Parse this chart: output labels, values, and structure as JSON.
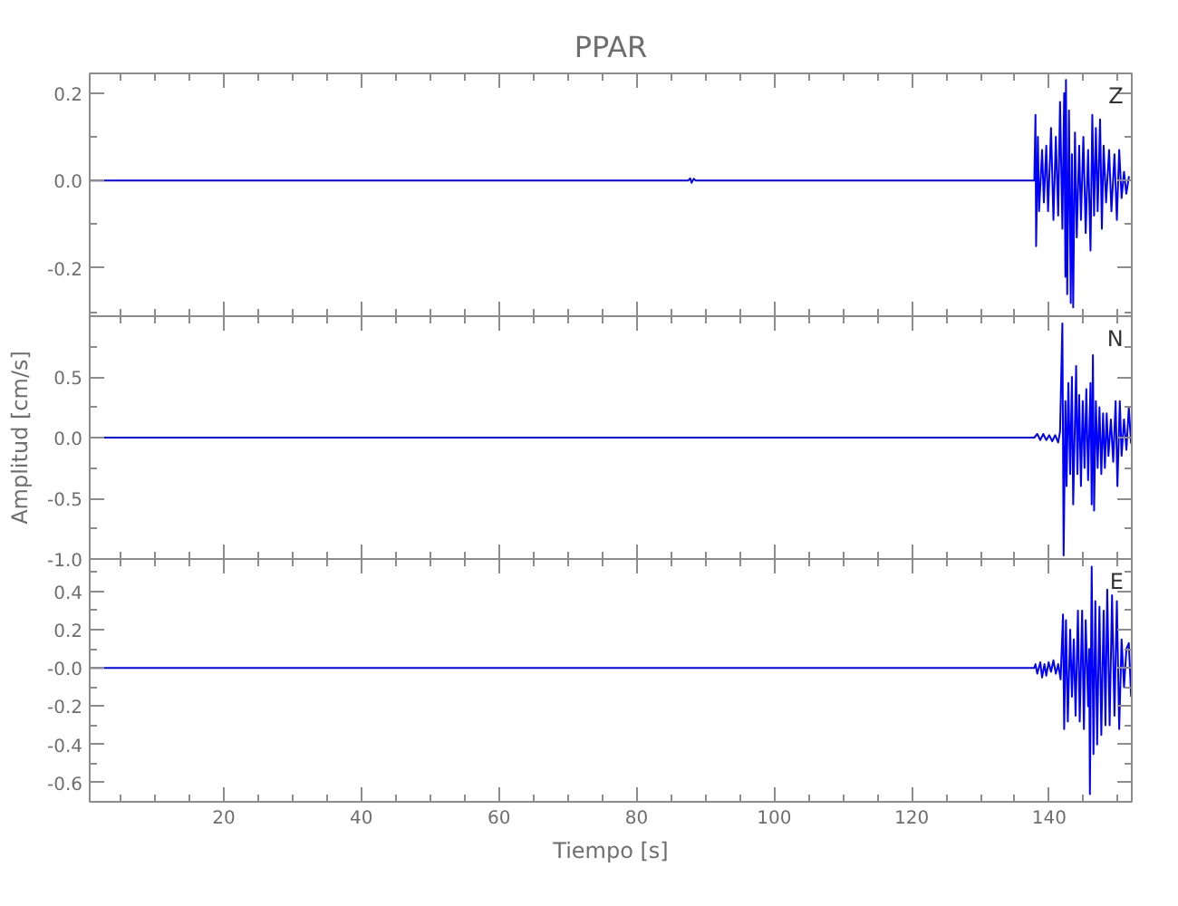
{
  "chart_data": [
    {
      "type": "line",
      "title": "PPAR",
      "tick_labels": "y",
      "x": [
        0.5,
        87.5,
        87.8,
        88.0,
        88.3,
        88.6,
        137.83,
        138.0,
        138.09,
        138.35,
        138.52,
        138.96,
        139.22,
        139.57,
        139.83,
        140.26,
        140.61,
        140.96,
        141.3,
        141.57,
        141.91,
        142.17,
        142.35,
        142.43,
        142.61,
        142.87,
        143.13,
        143.3,
        143.48,
        143.74,
        144.0,
        144.35,
        144.61,
        144.96,
        145.3,
        145.65,
        146.0,
        146.26,
        146.52,
        146.78,
        147.04,
        147.39,
        147.65,
        147.91,
        148.26,
        148.7,
        149.04,
        149.48,
        149.83,
        150.17,
        150.52,
        150.87,
        151.2,
        151.6
      ],
      "series": [
        {
          "name": "Z",
          "color": "#0000ff",
          "values": [
            0,
            0,
            0.005,
            -0.005,
            0.004,
            0,
            0,
            0.15,
            -0.15,
            0.1,
            -0.07,
            0.07,
            -0.05,
            0.08,
            -0.07,
            0.12,
            -0.09,
            0.1,
            -0.08,
            0.18,
            -0.11,
            0.2,
            -0.22,
            0.23,
            -0.26,
            0.16,
            -0.28,
            0.06,
            -0.29,
            0.11,
            -0.13,
            0.08,
            -0.09,
            0.1,
            -0.12,
            0.07,
            -0.16,
            0.15,
            -0.08,
            0.12,
            -0.07,
            0.14,
            -0.11,
            0.08,
            -0.05,
            0.07,
            -0.07,
            0.06,
            -0.09,
            0.07,
            -0.04,
            0.02,
            -0.03,
            0.01
          ]
        }
      ],
      "xlim": [
        0.5,
        152.0
      ],
      "xticks": [
        {
          "value": 5,
          "label": null
        },
        {
          "value": 10,
          "label": null
        },
        {
          "value": 15,
          "label": null
        },
        20,
        {
          "value": 25,
          "label": null
        },
        {
          "value": 30,
          "label": null
        },
        {
          "value": 35,
          "label": null
        },
        40,
        {
          "value": 45,
          "label": null
        },
        {
          "value": 50,
          "label": null
        },
        {
          "value": 55,
          "label": null
        },
        60,
        {
          "value": 65,
          "label": null
        },
        {
          "value": 70,
          "label": null
        },
        {
          "value": 75,
          "label": null
        },
        80,
        {
          "value": 85,
          "label": null
        },
        {
          "value": 90,
          "label": null
        },
        {
          "value": 95,
          "label": null
        },
        100,
        {
          "value": 105,
          "label": null
        },
        {
          "value": 110,
          "label": null
        },
        {
          "value": 115,
          "label": null
        },
        120,
        {
          "value": 125,
          "label": null
        },
        {
          "value": 130,
          "label": null
        },
        {
          "value": 135,
          "label": null
        },
        140,
        {
          "value": 145,
          "label": null
        },
        {
          "value": 150,
          "label": null
        }
      ],
      "ylim": [
        -0.31,
        0.245
      ],
      "yticks": [
        {
          "value": -0.3,
          "label": null
        },
        -0.2,
        {
          "value": -0.1,
          "label": null
        },
        {
          "value": 0,
          "label": "0.0"
        },
        {
          "value": 0.1,
          "label": null
        },
        0.2
      ]
    },
    {
      "type": "line",
      "ylabel": "Amplitud [cm/s]",
      "tick_labels": "y",
      "x": [
        0.5,
        137.83,
        138.26,
        138.7,
        139.13,
        139.57,
        140.0,
        140.43,
        140.87,
        141.3,
        141.57,
        141.91,
        142.09,
        142.35,
        142.52,
        142.78,
        143.04,
        143.3,
        143.48,
        143.91,
        144.09,
        144.35,
        144.61,
        144.87,
        145.13,
        145.39,
        145.65,
        146.0,
        146.17,
        146.35,
        146.52,
        146.78,
        147.04,
        147.3,
        147.57,
        147.83,
        148.09,
        148.35,
        148.61,
        148.96,
        149.3,
        149.65,
        149.91,
        150.26,
        150.52,
        150.87,
        151.22,
        151.57,
        151.9
      ],
      "series": [
        {
          "name": "N",
          "color": "#0000ff",
          "values": [
            0,
            0,
            0.03,
            -0.02,
            0.03,
            -0.02,
            0.02,
            -0.03,
            0.02,
            -0.04,
            0.05,
            0.94,
            -0.97,
            0.3,
            -0.4,
            0.45,
            -0.3,
            0.5,
            -0.55,
            0.59,
            -0.3,
            0.35,
            -0.4,
            0.3,
            -0.25,
            0.4,
            -0.35,
            0.45,
            -0.55,
            0.68,
            -0.6,
            0.3,
            -0.25,
            0.25,
            -0.3,
            0.2,
            -0.25,
            0.2,
            -0.15,
            0.15,
            -0.2,
            0.3,
            -0.4,
            0.3,
            -0.15,
            0.15,
            -0.1,
            0.25,
            -0.05
          ]
        }
      ],
      "xlim": [
        0.5,
        152.0
      ],
      "xticks": [
        {
          "value": 5,
          "label": null
        },
        {
          "value": 10,
          "label": null
        },
        {
          "value": 15,
          "label": null
        },
        20,
        {
          "value": 25,
          "label": null
        },
        {
          "value": 30,
          "label": null
        },
        {
          "value": 35,
          "label": null
        },
        40,
        {
          "value": 45,
          "label": null
        },
        {
          "value": 50,
          "label": null
        },
        {
          "value": 55,
          "label": null
        },
        60,
        {
          "value": 65,
          "label": null
        },
        {
          "value": 70,
          "label": null
        },
        {
          "value": 75,
          "label": null
        },
        80,
        {
          "value": 85,
          "label": null
        },
        {
          "value": 90,
          "label": null
        },
        {
          "value": 95,
          "label": null
        },
        100,
        {
          "value": 105,
          "label": null
        },
        {
          "value": 110,
          "label": null
        },
        {
          "value": 115,
          "label": null
        },
        120,
        {
          "value": 125,
          "label": null
        },
        {
          "value": 130,
          "label": null
        },
        {
          "value": 135,
          "label": null
        },
        140,
        {
          "value": 145,
          "label": null
        },
        {
          "value": 150,
          "label": null
        }
      ],
      "ylim": [
        -1.0,
        1.0
      ],
      "yticks": [
        {
          "value": -1,
          "label": "-1.0"
        },
        {
          "value": -0.75,
          "label": null
        },
        -0.5,
        {
          "value": -0.25,
          "label": null
        },
        {
          "value": 0,
          "label": "0.0"
        },
        {
          "value": 0.25,
          "label": null
        },
        0.5,
        {
          "value": 0.75,
          "label": null
        }
      ]
    },
    {
      "type": "line",
      "xlabel": "Tiempo [s]",
      "x": [
        0.5,
        137.83,
        138.0,
        138.26,
        138.7,
        138.96,
        139.3,
        139.57,
        139.91,
        140.26,
        140.61,
        140.96,
        141.3,
        141.65,
        142.0,
        142.17,
        142.43,
        142.7,
        143.04,
        143.3,
        143.57,
        143.83,
        144.17,
        144.43,
        144.78,
        145.04,
        145.3,
        145.65,
        145.8,
        145.91,
        146.17,
        146.43,
        146.7,
        146.96,
        147.3,
        147.57,
        147.91,
        148.17,
        148.43,
        148.78,
        149.13,
        149.48,
        149.83,
        150.17,
        150.52,
        150.87,
        151.22,
        151.57,
        151.9
      ],
      "series": [
        {
          "name": "E",
          "color": "#0000ff",
          "values": [
            0,
            0,
            0.02,
            -0.03,
            0.03,
            -0.05,
            0.02,
            -0.04,
            0.03,
            -0.02,
            0.04,
            -0.03,
            0.02,
            -0.06,
            0.28,
            -0.32,
            0.25,
            -0.28,
            0.2,
            -0.15,
            0.15,
            -0.25,
            0.3,
            -0.28,
            0.3,
            -0.32,
            0.25,
            -0.2,
            0.1,
            -0.66,
            0.53,
            -0.45,
            0.35,
            -0.4,
            0.32,
            -0.35,
            0.3,
            -0.3,
            0.41,
            -0.3,
            0.38,
            -0.25,
            0.35,
            -0.32,
            0.15,
            -0.1,
            0.1,
            0.13,
            -0.15
          ]
        }
      ],
      "xlim": [
        0.5,
        152.0
      ],
      "xticks": [
        {
          "value": 5,
          "label": null
        },
        {
          "value": 10,
          "label": null
        },
        {
          "value": 15,
          "label": null
        },
        20,
        {
          "value": 25,
          "label": null
        },
        {
          "value": 30,
          "label": null
        },
        {
          "value": 35,
          "label": null
        },
        40,
        {
          "value": 45,
          "label": null
        },
        {
          "value": 50,
          "label": null
        },
        {
          "value": 55,
          "label": null
        },
        60,
        {
          "value": 65,
          "label": null
        },
        {
          "value": 70,
          "label": null
        },
        {
          "value": 75,
          "label": null
        },
        80,
        {
          "value": 85,
          "label": null
        },
        {
          "value": 90,
          "label": null
        },
        {
          "value": 95,
          "label": null
        },
        100,
        {
          "value": 105,
          "label": null
        },
        {
          "value": 110,
          "label": null
        },
        {
          "value": 115,
          "label": null
        },
        120,
        {
          "value": 125,
          "label": null
        },
        {
          "value": 130,
          "label": null
        },
        {
          "value": 135,
          "label": null
        },
        140,
        {
          "value": 145,
          "label": null
        },
        {
          "value": 150,
          "label": null
        }
      ],
      "ylim": [
        -0.7,
        0.57
      ],
      "yticks": [
        -0.6,
        {
          "value": -0.5,
          "label": null
        },
        -0.4,
        {
          "value": -0.3,
          "label": null
        },
        -0.2,
        {
          "value": -0.1,
          "label": null
        },
        {
          "value": 0,
          "label": "-0.0"
        },
        {
          "value": 0.1,
          "label": null
        },
        0.2,
        {
          "value": 0.3,
          "label": null
        },
        0.4,
        {
          "value": 0.5,
          "label": null
        }
      ]
    }
  ]
}
